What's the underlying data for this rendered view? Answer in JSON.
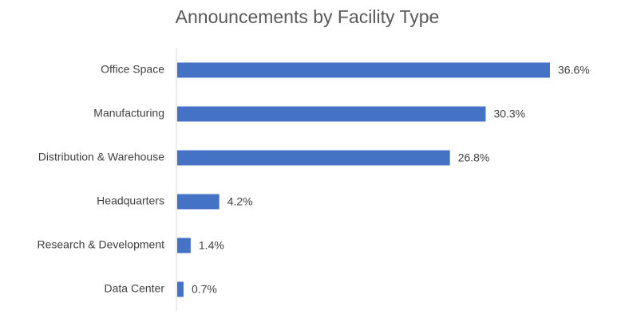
{
  "chart_data": {
    "type": "bar",
    "orientation": "horizontal",
    "title": "Announcements by Facility Type",
    "categories": [
      "Office Space",
      "Manufacturing",
      "Distribution & Warehouse",
      "Headquarters",
      "Research & Development",
      "Data Center"
    ],
    "values": [
      36.6,
      30.3,
      26.8,
      4.2,
      1.4,
      0.7
    ],
    "value_labels": [
      "36.6%",
      "30.3%",
      "26.8%",
      "4.2%",
      "1.4%",
      "0.7%"
    ],
    "color": "#4472c4"
  }
}
